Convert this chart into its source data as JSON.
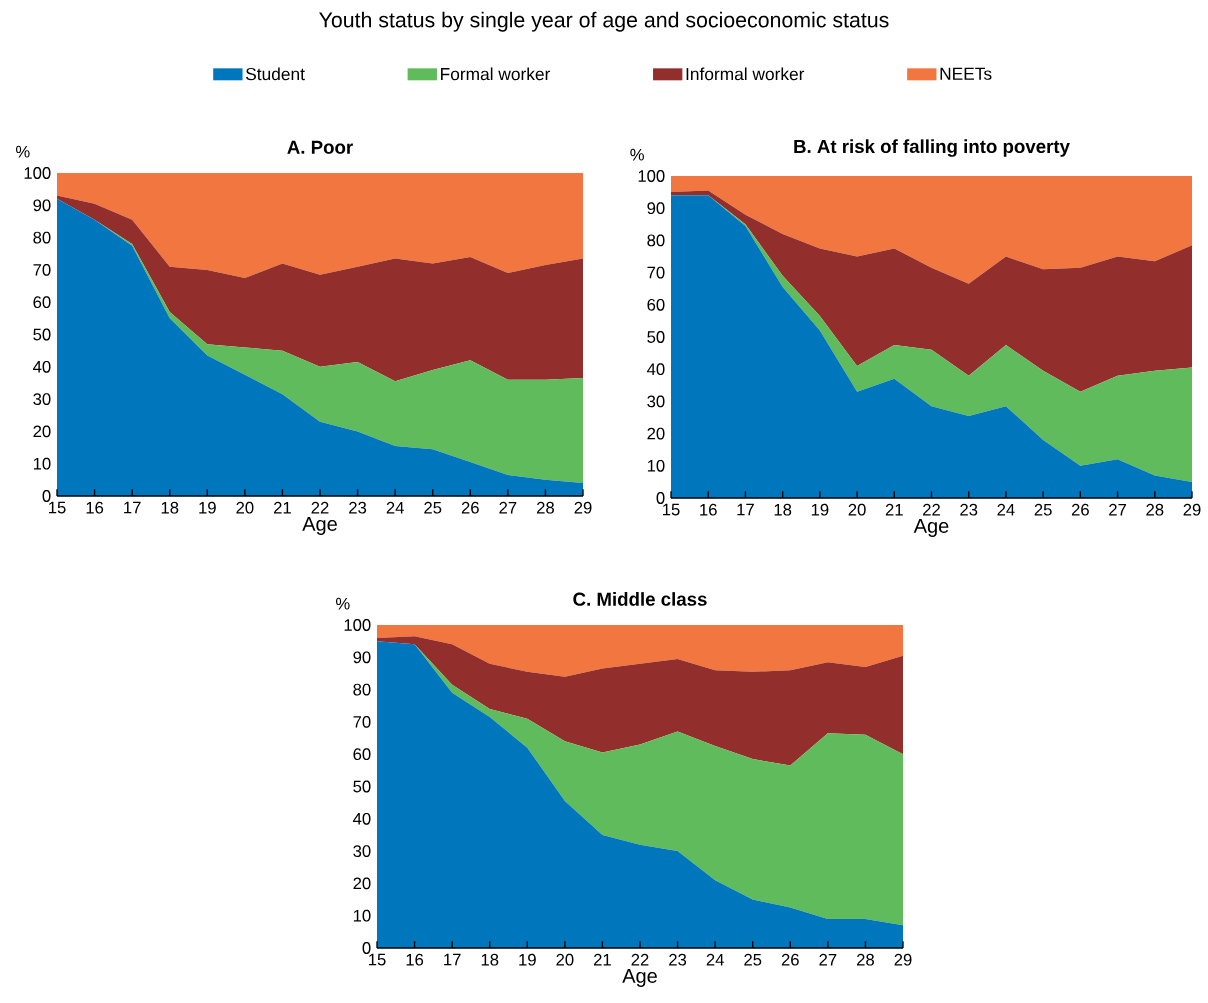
{
  "chart_data": [
    {
      "type": "other",
      "title": "Youth status by single year of age and socioeconomic status"
    },
    {
      "type": "area",
      "stacked": true,
      "title": "A. Poor",
      "xlabel": "Age",
      "ylabel": "%",
      "legend": "top",
      "x": [
        15,
        16,
        17,
        18,
        19,
        20,
        21,
        22,
        23,
        24,
        25,
        26,
        27,
        28,
        29
      ],
      "xlim": [
        15,
        29
      ],
      "ylim": [
        0,
        100
      ],
      "xticks": [
        15,
        16,
        17,
        18,
        19,
        20,
        21,
        22,
        23,
        24,
        25,
        26,
        27,
        28,
        29
      ],
      "yticks": [
        0,
        10,
        20,
        30,
        40,
        50,
        60,
        70,
        80,
        90,
        100
      ],
      "series": [
        {
          "name": "Student",
          "color": "#0077bd",
          "values": [
            92,
            85.5,
            77.5,
            55,
            43.5,
            37.5,
            31.5,
            23,
            20,
            15.5,
            14.5,
            10.5,
            6.5,
            5,
            4
          ]
        },
        {
          "name": "Formal worker",
          "color": "#5fbb5b",
          "values": [
            0,
            0,
            0.5,
            2,
            3.5,
            8.5,
            13.5,
            17,
            21.5,
            20,
            24.5,
            31.5,
            29.5,
            31,
            32.5
          ]
        },
        {
          "name": "Informal worker",
          "color": "#922f2d",
          "values": [
            1,
            5,
            7.5,
            14,
            23,
            21.5,
            27,
            28.5,
            29.5,
            38,
            33,
            32,
            33,
            35.5,
            37
          ]
        },
        {
          "name": "NEETs",
          "color": "#f2763f",
          "values": [
            7,
            9.5,
            14.5,
            29,
            30,
            32.5,
            28,
            31.5,
            29,
            26.5,
            28,
            26,
            31,
            28.5,
            26.5
          ]
        }
      ]
    },
    {
      "type": "area",
      "stacked": true,
      "title": "B. At risk of falling into poverty",
      "xlabel": "Age",
      "ylabel": "%",
      "x": [
        15,
        16,
        17,
        18,
        19,
        20,
        21,
        22,
        23,
        24,
        25,
        26,
        27,
        28,
        29
      ],
      "xlim": [
        15,
        29
      ],
      "ylim": [
        0,
        100
      ],
      "xticks": [
        15,
        16,
        17,
        18,
        19,
        20,
        21,
        22,
        23,
        24,
        25,
        26,
        27,
        28,
        29
      ],
      "yticks": [
        0,
        10,
        20,
        30,
        40,
        50,
        60,
        70,
        80,
        90,
        100
      ],
      "series": [
        {
          "color": "#0077bd",
          "values": [
            94,
            94,
            84.5,
            65.5,
            52,
            33,
            37,
            28.5,
            25.5,
            28.5,
            18,
            10,
            12,
            7,
            5
          ]
        },
        {
          "color": "#5fbb5b",
          "values": [
            0,
            0,
            0.5,
            3.5,
            4.5,
            8,
            10.5,
            17.5,
            12.5,
            19,
            21.5,
            23,
            26,
            32.5,
            35.5
          ]
        },
        {
          "color": "#922f2d",
          "values": [
            1,
            1.5,
            3,
            13,
            21,
            34,
            30,
            25.5,
            28.5,
            27.5,
            31.5,
            38.5,
            37,
            34,
            38
          ]
        },
        {
          "color": "#f2763f",
          "values": [
            5,
            4.5,
            12,
            18,
            22.5,
            25,
            22.5,
            28.5,
            33.5,
            25,
            29,
            28.5,
            25,
            26.5,
            21.5
          ]
        }
      ]
    },
    {
      "type": "area",
      "stacked": true,
      "title": "C. Middle class",
      "xlabel": "Age",
      "ylabel": "%",
      "x": [
        15,
        16,
        17,
        18,
        19,
        20,
        21,
        22,
        23,
        24,
        25,
        26,
        27,
        28,
        29
      ],
      "xlim": [
        15,
        29
      ],
      "ylim": [
        0,
        100
      ],
      "xticks": [
        15,
        16,
        17,
        18,
        19,
        20,
        21,
        22,
        23,
        24,
        25,
        26,
        27,
        28,
        29
      ],
      "yticks": [
        0,
        10,
        20,
        30,
        40,
        50,
        60,
        70,
        80,
        90,
        100
      ],
      "series": [
        {
          "color": "#0077bd",
          "values": [
            95,
            94,
            79,
            71.5,
            62,
            45.5,
            35,
            32,
            30,
            21,
            15,
            12.5,
            9,
            9,
            7
          ]
        },
        {
          "color": "#5fbb5b",
          "values": [
            0,
            0,
            2.5,
            2.5,
            9,
            18.5,
            25.5,
            31,
            37,
            41.5,
            43.5,
            44,
            57.5,
            57,
            53
          ]
        },
        {
          "color": "#922f2d",
          "values": [
            1,
            2.5,
            12.5,
            14,
            14.5,
            20,
            26,
            25,
            22.5,
            23.5,
            27,
            29.5,
            22,
            21,
            30.5
          ]
        },
        {
          "color": "#f2763f",
          "values": [
            4,
            3.5,
            6,
            12,
            14.5,
            16,
            13.5,
            12,
            10.5,
            14,
            14.5,
            14,
            11.5,
            13,
            9.5
          ]
        }
      ]
    }
  ]
}
